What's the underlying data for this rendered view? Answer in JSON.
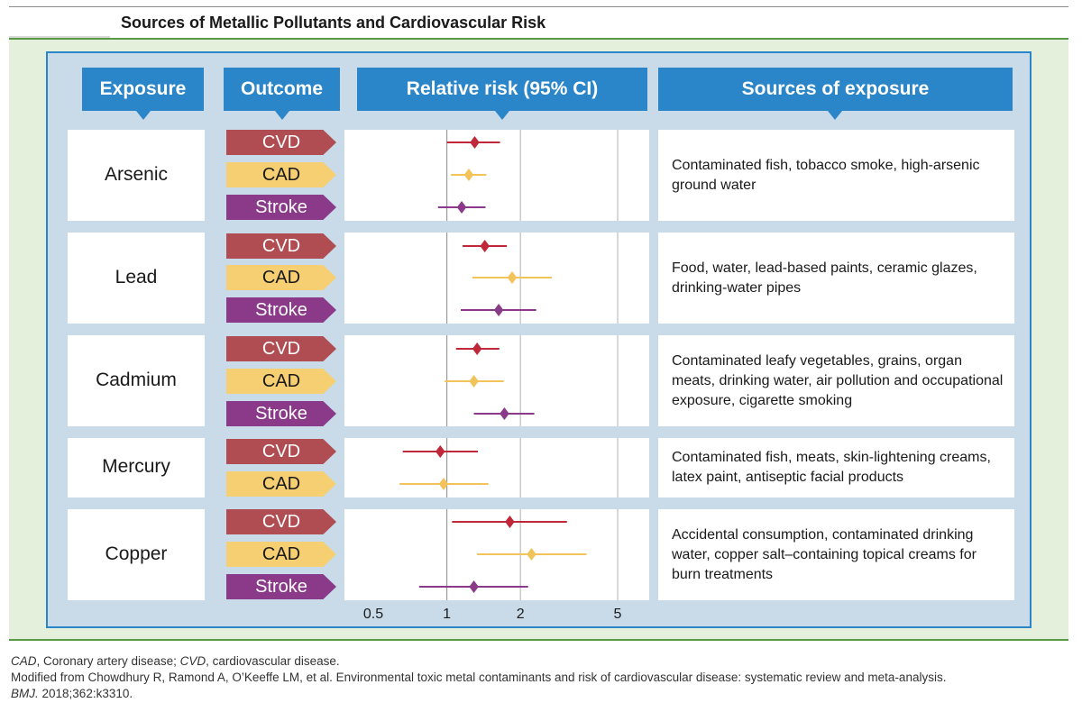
{
  "title": "Sources of Metallic Pollutants and Cardiovascular Risk",
  "headers": {
    "exposure": "Exposure",
    "outcome": "Outcome",
    "relative_risk": "Relative risk (95% CI)",
    "sources": "Sources of exposure"
  },
  "colors": {
    "cvd": "#b04d52",
    "cvd_marker": "#c0283a",
    "cad": "#f5cf72",
    "cad_marker": "#f2c35a",
    "stroke": "#8b3a8a",
    "header_blue": "#2a86c8",
    "green_rule": "#5a9a46"
  },
  "chart_data": {
    "type": "forest",
    "xscale": "log",
    "xticks": [
      0.5,
      1,
      2,
      5
    ],
    "xtick_labels": [
      "0.5",
      "1",
      "2",
      "5"
    ],
    "xlim": [
      0.4,
      7
    ],
    "reference_line": 1,
    "groups": [
      {
        "exposure": "Arsenic",
        "sources": "Contaminated fish, tobacco smoke, high-arsenic ground water",
        "outcomes": [
          {
            "label": "CVD",
            "rr": 1.3,
            "lo": 1.0,
            "hi": 1.65
          },
          {
            "label": "CAD",
            "rr": 1.23,
            "lo": 1.04,
            "hi": 1.45
          },
          {
            "label": "Stroke",
            "rr": 1.15,
            "lo": 0.92,
            "hi": 1.44
          }
        ]
      },
      {
        "exposure": "Lead",
        "sources": "Food, water, lead-based paints, ceramic glazes, drinking-water pipes",
        "outcomes": [
          {
            "label": "CVD",
            "rr": 1.43,
            "lo": 1.16,
            "hi": 1.76
          },
          {
            "label": "CAD",
            "rr": 1.85,
            "lo": 1.27,
            "hi": 2.69
          },
          {
            "label": "Stroke",
            "rr": 1.63,
            "lo": 1.14,
            "hi": 2.32
          }
        ]
      },
      {
        "exposure": "Cadmium",
        "sources": "Contaminated leafy vegetables, grains, organ meats, drinking water, air pollution and occupational exposure, cigarette smoking",
        "outcomes": [
          {
            "label": "CVD",
            "rr": 1.33,
            "lo": 1.09,
            "hi": 1.64
          },
          {
            "label": "CAD",
            "rr": 1.29,
            "lo": 0.98,
            "hi": 1.71
          },
          {
            "label": "Stroke",
            "rr": 1.72,
            "lo": 1.29,
            "hi": 2.28
          }
        ]
      },
      {
        "exposure": "Mercury",
        "sources": "Contaminated fish, meats, skin-lightening creams, latex paint, antiseptic facial products",
        "outcomes": [
          {
            "label": "CVD",
            "rr": 0.94,
            "lo": 0.66,
            "hi": 1.34
          },
          {
            "label": "CAD",
            "rr": 0.97,
            "lo": 0.64,
            "hi": 1.48
          }
        ]
      },
      {
        "exposure": "Copper",
        "sources": "Accidental consumption, contaminated drinking water, copper salt–containing topical creams for burn treatments",
        "outcomes": [
          {
            "label": "CVD",
            "rr": 1.81,
            "lo": 1.05,
            "hi": 3.1
          },
          {
            "label": "CAD",
            "rr": 2.22,
            "lo": 1.33,
            "hi": 3.73
          },
          {
            "label": "Stroke",
            "rr": 1.29,
            "lo": 0.77,
            "hi": 2.15
          }
        ]
      }
    ]
  },
  "footnote": {
    "abbr1": "CAD",
    "abbr1_def": ", Coronary artery disease; ",
    "abbr2": "CVD",
    "abbr2_def": ", cardiovascular disease.",
    "source_line": "Modified from Chowdhury R, Ramond A, O’Keeffe LM, et al. Environmental toxic metal contaminants and risk of cardiovascular disease: systematic review and meta-analysis.",
    "journal": "BMJ.",
    "citation": " 2018;362:k3310."
  }
}
